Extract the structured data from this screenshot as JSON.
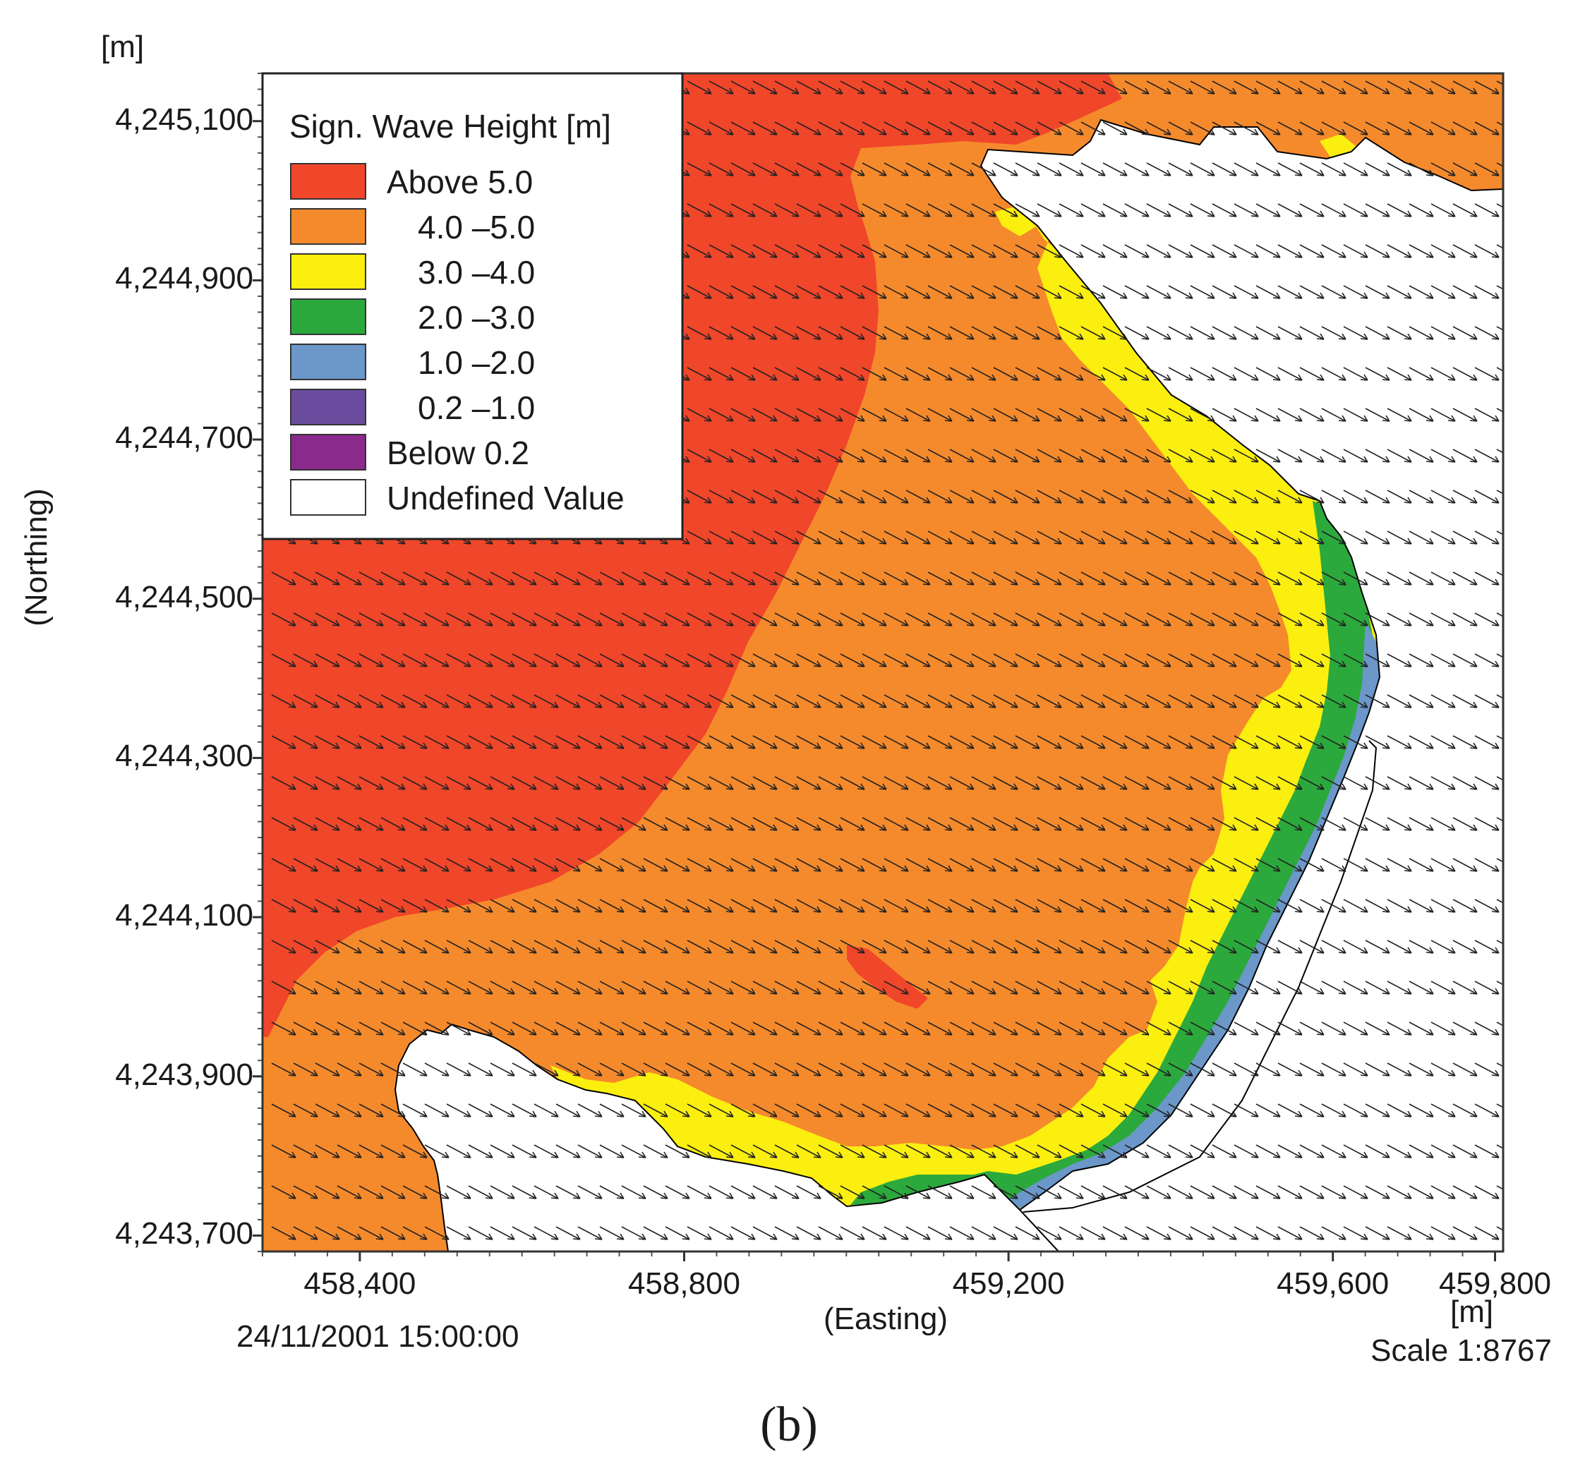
{
  "chart_data": {
    "type": "heatmap",
    "title": "",
    "xlabel": "(Easting)",
    "ylabel": "(Northing)",
    "x_unit": "[m]",
    "y_unit": "[m]",
    "xlim": [
      458280,
      459810
    ],
    "ylim": [
      4243680,
      4245160
    ],
    "x_ticks": [
      458400,
      458800,
      459200,
      459600,
      459800
    ],
    "x_tick_labels": [
      "458,400",
      "458,800",
      "459,200",
      "459,600",
      "459,800"
    ],
    "y_ticks": [
      4243700,
      4243900,
      4244100,
      4244300,
      4244500,
      4244700,
      4244900,
      4245100
    ],
    "y_tick_labels": [
      "4,243,700",
      "4,243,900",
      "4,244,100",
      "4,244,300",
      "4,244,500",
      "4,244,700",
      "4,244,900",
      "4,245,100"
    ],
    "legend": {
      "title": "Sign. Wave Height [m]",
      "position": "top-left",
      "entries": [
        {
          "label": "Above 5.0",
          "color": "#f0462a"
        },
        {
          "label": "4.0 –5.0",
          "color": "#f58a2c"
        },
        {
          "label": "3.0 –4.0",
          "color": "#fbef0f"
        },
        {
          "label": "2.0 –3.0",
          "color": "#2ca93c"
        },
        {
          "label": "1.0 –2.0",
          "color": "#6b97c9"
        },
        {
          "label": "0.2 –1.0",
          "color": "#6a4c9e"
        },
        {
          "label": "Below 0.2",
          "color": "#8a2a8c"
        },
        {
          "label": "Undefined Value",
          "color": "#ffffff"
        }
      ]
    },
    "vector_field": {
      "quantity": "wave direction",
      "direction": "toward south-east"
    },
    "timestamp": "24/11/2001 15:00:00",
    "scale": "Scale 1:8767"
  },
  "panel_label": "(b)"
}
